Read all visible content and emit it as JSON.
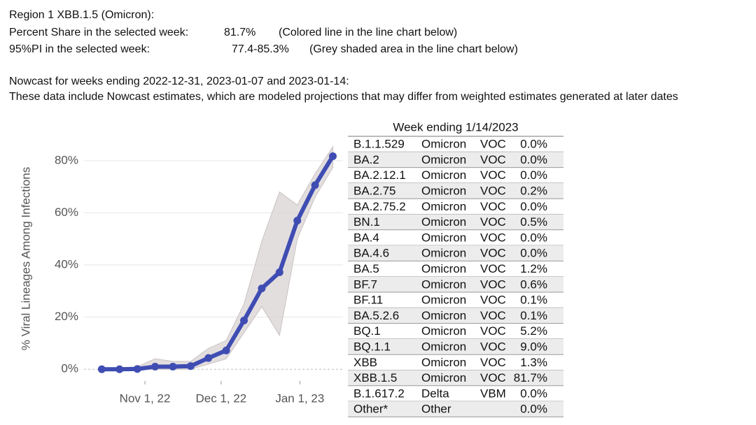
{
  "header": {
    "region": "Region 1  XBB.1.5 (Omicron):",
    "share_label": "Percent Share in the selected week:",
    "share_value": "81.7%",
    "share_note": "(Colored line in the line chart below)",
    "pi_label": "95%PI in the selected week:",
    "pi_value": "77.4-85.3%",
    "pi_note": "(Grey shaded area in the line chart below)",
    "nowcast": "Nowcast for weeks ending 2022-12-31, 2023-01-07 and 2023-01-14:",
    "disclaimer": "These data include Nowcast estimates, which are modeled projections that may differ from weighted estimates generated at later dates"
  },
  "chart_data": {
    "type": "line",
    "y_label": "% Viral Lineages Among Infections",
    "x": [
      "2022-10-15",
      "2022-10-22",
      "2022-10-29",
      "2022-11-05",
      "2022-11-12",
      "2022-11-19",
      "2022-11-26",
      "2022-12-03",
      "2022-12-10",
      "2022-12-17",
      "2022-12-24",
      "2022-12-31",
      "2023-01-07",
      "2023-01-14"
    ],
    "values": [
      0.0,
      0.0,
      0.1,
      1.0,
      1.0,
      1.2,
      4.3,
      7.2,
      18.7,
      31.0,
      37.2,
      57.0,
      70.6,
      81.7
    ],
    "pi_lower": [
      0.0,
      0.0,
      0.0,
      0.0,
      0.0,
      0.0,
      2.0,
      4.0,
      14.0,
      24.0,
      13.0,
      50.0,
      66.0,
      77.4
    ],
    "pi_upper": [
      0.5,
      0.5,
      1.0,
      4.0,
      3.0,
      3.0,
      8.0,
      11.0,
      25.0,
      49.0,
      68.0,
      63.0,
      75.0,
      85.3
    ],
    "color": "#3f4db3",
    "band_color": "#d9d3d3",
    "xlim": [
      "2022-10-08",
      "2023-01-18"
    ],
    "xticks": [
      {
        "value": "2022-11-01",
        "label": "Nov 1, 22"
      },
      {
        "value": "2022-12-01",
        "label": "Dec 1, 22"
      },
      {
        "value": "2023-01-01",
        "label": "Jan 1, 23"
      }
    ],
    "ylim": [
      -4.5,
      88
    ],
    "yticks": [
      {
        "value": 0,
        "label": "0%"
      },
      {
        "value": 20,
        "label": "20%"
      },
      {
        "value": 40,
        "label": "40%"
      },
      {
        "value": 60,
        "label": "60%"
      },
      {
        "value": 80,
        "label": "80%"
      }
    ],
    "grid": true
  },
  "table": {
    "title": "Week ending 1/14/2023",
    "rows": [
      [
        "B.1.1.529",
        "Omicron",
        "VOC",
        "0.0%"
      ],
      [
        "BA.2",
        "Omicron",
        "VOC",
        "0.0%"
      ],
      [
        "BA.2.12.1",
        "Omicron",
        "VOC",
        "0.0%"
      ],
      [
        "BA.2.75",
        "Omicron",
        "VOC",
        "0.2%"
      ],
      [
        "BA.2.75.2",
        "Omicron",
        "VOC",
        "0.0%"
      ],
      [
        "BN.1",
        "Omicron",
        "VOC",
        "0.5%"
      ],
      [
        "BA.4",
        "Omicron",
        "VOC",
        "0.0%"
      ],
      [
        "BA.4.6",
        "Omicron",
        "VOC",
        "0.0%"
      ],
      [
        "BA.5",
        "Omicron",
        "VOC",
        "1.2%"
      ],
      [
        "BF.7",
        "Omicron",
        "VOC",
        "0.6%"
      ],
      [
        "BF.11",
        "Omicron",
        "VOC",
        "0.1%"
      ],
      [
        "BA.5.2.6",
        "Omicron",
        "VOC",
        "0.1%"
      ],
      [
        "BQ.1",
        "Omicron",
        "VOC",
        "5.2%"
      ],
      [
        "BQ.1.1",
        "Omicron",
        "VOC",
        "9.0%"
      ],
      [
        "XBB",
        "Omicron",
        "VOC",
        "1.3%"
      ],
      [
        "XBB.1.5",
        "Omicron",
        "VOC",
        "81.7%"
      ],
      [
        "B.1.617.2",
        "Delta",
        "VBM",
        "0.0%"
      ],
      [
        "Other*",
        "Other",
        null,
        "0.0%"
      ]
    ]
  }
}
